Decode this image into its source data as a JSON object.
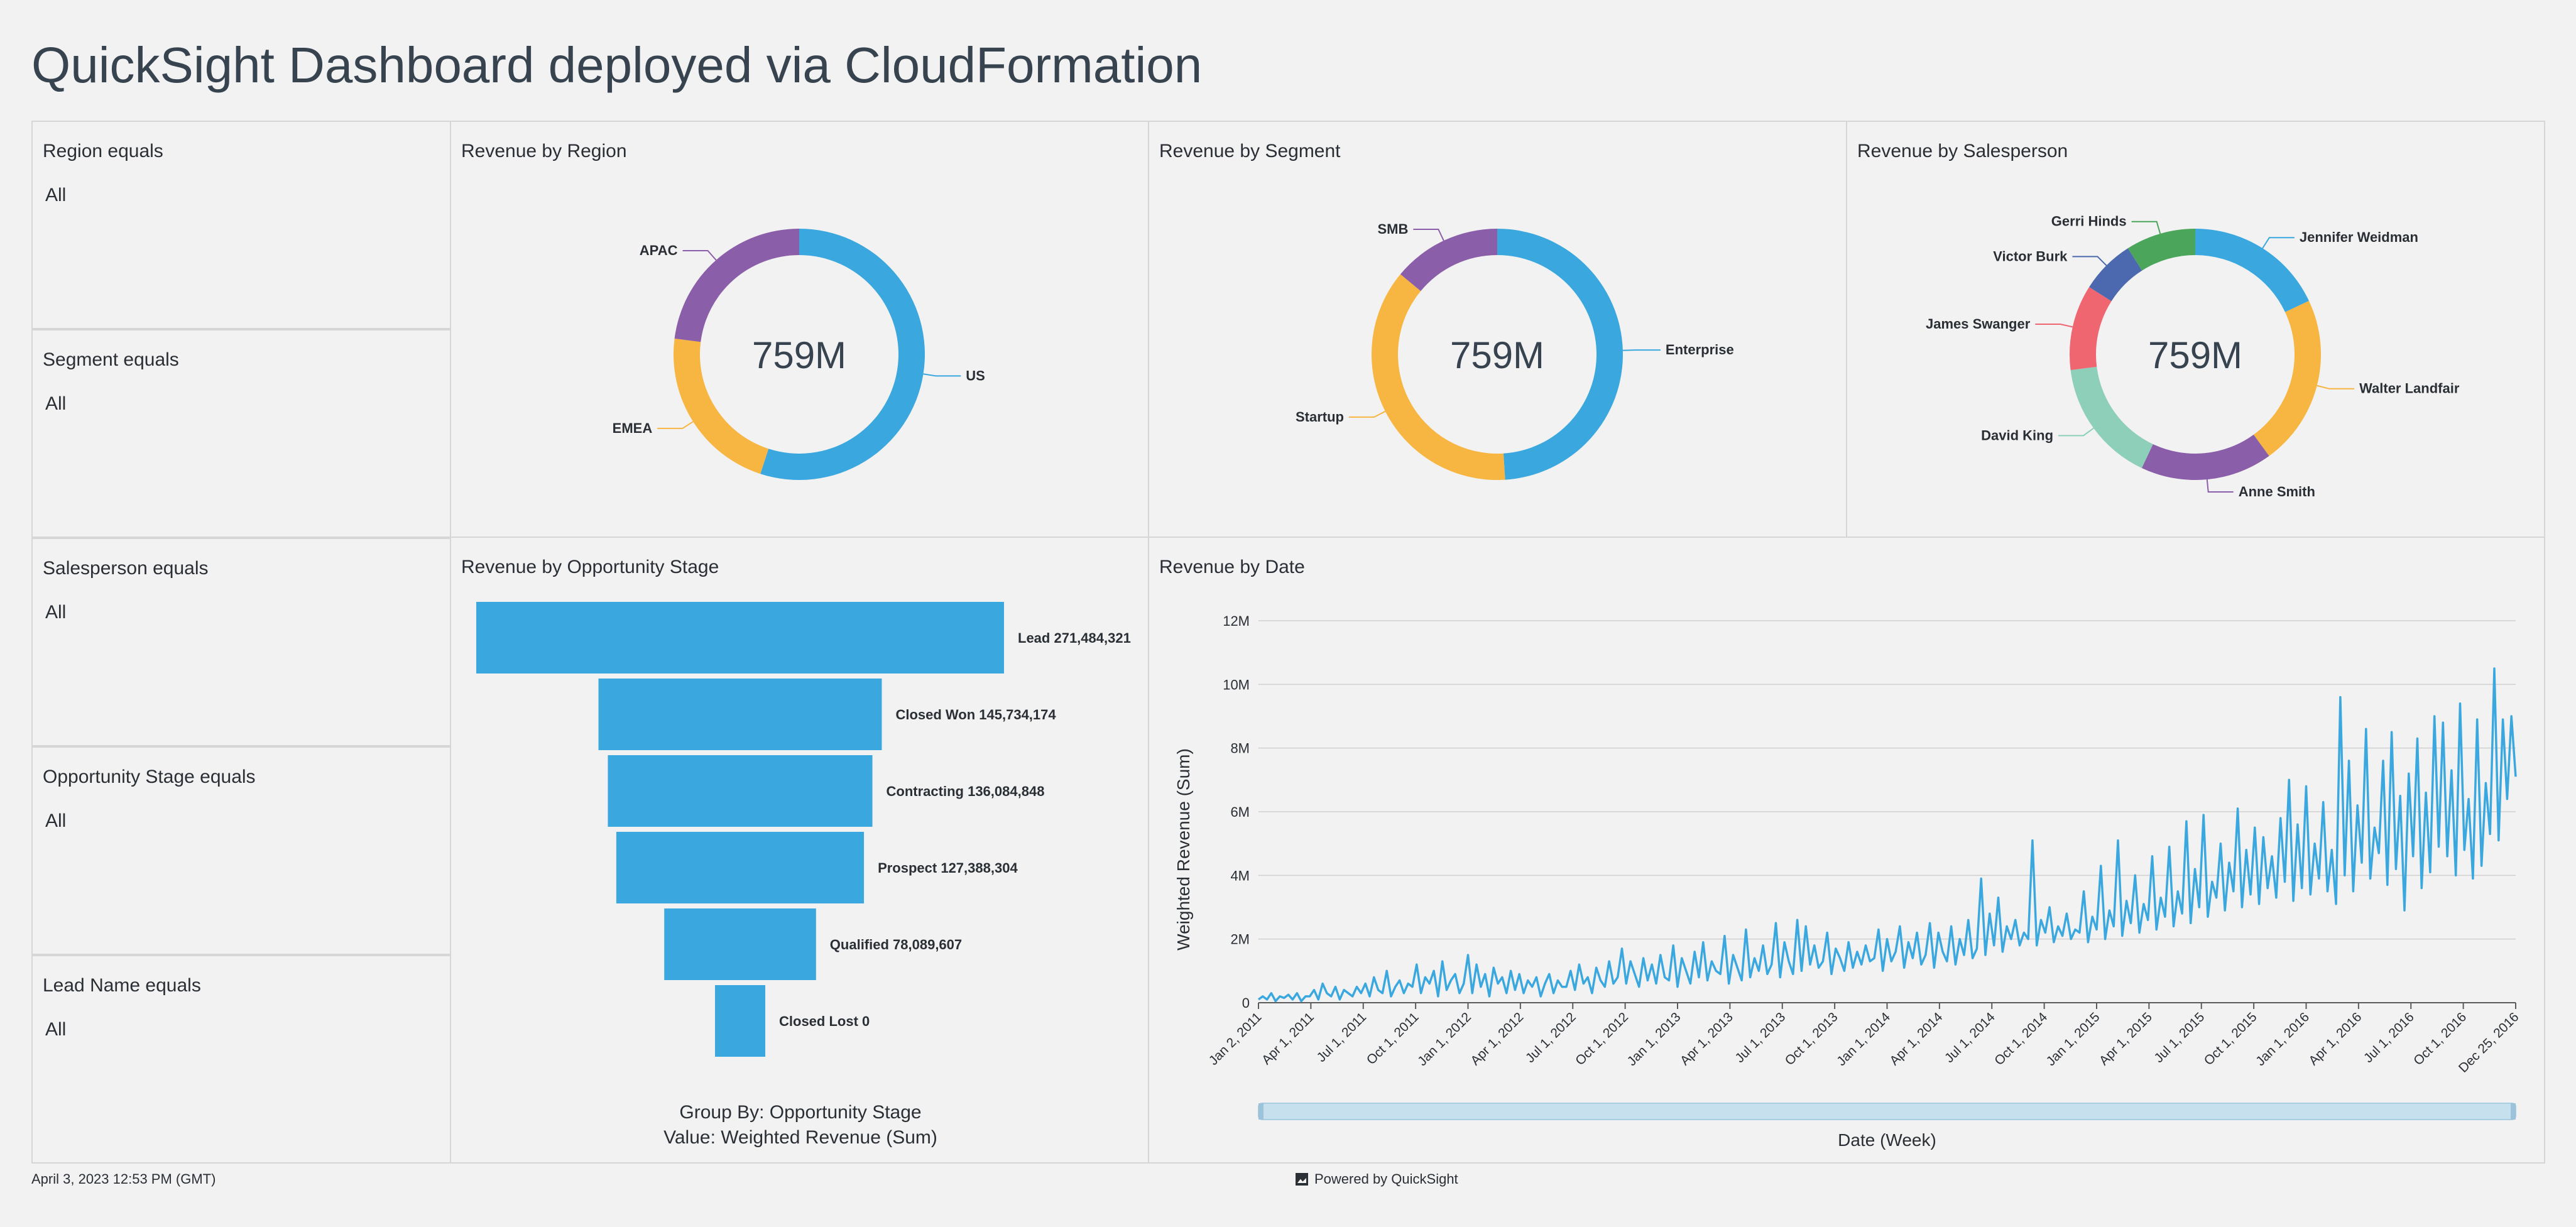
{
  "page": {
    "title": "QuickSight Dashboard deployed via CloudFormation",
    "footer_timestamp": "April 3, 2023 12:53 PM (GMT)",
    "footer_powered": "Powered by QuickSight"
  },
  "filters": [
    {
      "label": "Region equals",
      "value": "All"
    },
    {
      "label": "Segment equals",
      "value": "All"
    },
    {
      "label": "Salesperson equals",
      "value": "All"
    },
    {
      "label": "Opportunity Stage equals",
      "value": "All"
    },
    {
      "label": "Lead Name equals",
      "value": "All"
    }
  ],
  "colors": {
    "blue": "#3aa8df",
    "orange": "#f7b542",
    "purple": "#8a5ea8",
    "teal": "#8dcfb8",
    "red": "#ef6671",
    "navy": "#4c69b0",
    "green": "#4ba55a",
    "range_bar": "#c7e0ee"
  },
  "chart_data": [
    {
      "type": "pie",
      "title": "Revenue by Region",
      "center_label": "759M",
      "slices": [
        {
          "label": "US",
          "share": 0.55,
          "color": "#3aa8df"
        },
        {
          "label": "EMEA",
          "share": 0.22,
          "color": "#f7b542"
        },
        {
          "label": "APAC",
          "share": 0.23,
          "color": "#8a5ea8"
        }
      ]
    },
    {
      "type": "pie",
      "title": "Revenue by Segment",
      "center_label": "759M",
      "slices": [
        {
          "label": "Enterprise",
          "share": 0.49,
          "color": "#3aa8df"
        },
        {
          "label": "Startup",
          "share": 0.37,
          "color": "#f7b542"
        },
        {
          "label": "SMB",
          "share": 0.14,
          "color": "#8a5ea8"
        }
      ]
    },
    {
      "type": "pie",
      "title": "Revenue by Salesperson",
      "center_label": "759M",
      "slices": [
        {
          "label": "Jennifer Weidman",
          "share": 0.18,
          "color": "#3aa8df"
        },
        {
          "label": "Walter Landfair",
          "share": 0.22,
          "color": "#f7b542"
        },
        {
          "label": "Anne Smith",
          "share": 0.17,
          "color": "#8a5ea8"
        },
        {
          "label": "David King",
          "share": 0.16,
          "color": "#8dcfb8"
        },
        {
          "label": "James Swanger",
          "share": 0.11,
          "color": "#ef6671"
        },
        {
          "label": "Victor Burk",
          "share": 0.07,
          "color": "#4c69b0"
        },
        {
          "label": "Gerri Hinds",
          "share": 0.09,
          "color": "#4ba55a"
        }
      ]
    },
    {
      "type": "bar",
      "subtype": "funnel",
      "title": "Revenue by Opportunity Stage",
      "categories": [
        "Lead",
        "Closed Won",
        "Contracting",
        "Prospect",
        "Qualified",
        "Closed Lost"
      ],
      "values": [
        271484321,
        145734174,
        136084848,
        127388304,
        78089607,
        0
      ],
      "value_labels": [
        "271,484,321",
        "145,734,174",
        "136,084,848",
        "127,388,304",
        "78,089,607",
        "0"
      ],
      "group_by": "Group By: Opportunity Stage",
      "value_by": "Value: Weighted Revenue (Sum)"
    },
    {
      "type": "line",
      "title": "Revenue by Date",
      "xlabel": "Date (Week)",
      "ylabel": "Weighted Revenue (Sum)",
      "y_ticks": [
        "0",
        "2M",
        "4M",
        "6M",
        "8M",
        "10M",
        "12M"
      ],
      "ylim": [
        0,
        12
      ],
      "x_ticks": [
        "Jan 2, 2011",
        "Apr 1, 2011",
        "Jul 1, 2011",
        "Oct 1, 2011",
        "Jan 1, 2012",
        "Apr 1, 2012",
        "Jul 1, 2012",
        "Oct 1, 2012",
        "Jan 1, 2013",
        "Apr 1, 2013",
        "Jul 1, 2013",
        "Oct 1, 2013",
        "Jan 1, 2014",
        "Apr 1, 2014",
        "Jul 1, 2014",
        "Oct 1, 2014",
        "Jan 1, 2015",
        "Apr 1, 2015",
        "Jul 1, 2015",
        "Oct 1, 2015",
        "Jan 1, 2016",
        "Apr 1, 2016",
        "Jul 1, 2016",
        "Oct 1, 2016",
        "Dec 25, 2016"
      ],
      "quarterly_values_millions": [
        [
          0.1,
          0.2,
          0.1,
          0.3,
          0.05,
          0.2,
          0.15,
          0.25,
          0.1,
          0.3,
          0.05,
          0.2
        ],
        [
          0.2,
          0.4,
          0.1,
          0.6,
          0.3,
          0.2,
          0.5,
          0.1,
          0.4,
          0.3,
          0.2,
          0.5
        ],
        [
          0.3,
          0.6,
          0.2,
          0.8,
          0.4,
          0.3,
          1.0,
          0.2,
          0.5,
          0.7,
          0.3,
          0.6
        ],
        [
          0.5,
          1.2,
          0.3,
          0.8,
          0.6,
          1.0,
          0.2,
          1.3,
          0.4,
          0.7,
          0.9,
          0.3
        ],
        [
          0.6,
          1.5,
          0.3,
          1.2,
          0.5,
          0.9,
          0.2,
          1.1,
          0.6,
          0.8,
          0.3,
          1.0
        ],
        [
          0.4,
          0.9,
          0.3,
          0.7,
          0.5,
          0.8,
          0.2,
          0.6,
          0.9,
          0.3,
          0.7,
          0.5
        ],
        [
          0.5,
          1.0,
          0.4,
          1.2,
          0.6,
          0.8,
          0.3,
          1.1,
          0.7,
          0.5,
          1.3,
          0.6
        ],
        [
          0.8,
          1.7,
          0.6,
          1.3,
          0.9,
          0.5,
          1.4,
          0.7,
          1.2,
          0.6,
          1.5,
          0.8
        ],
        [
          0.7,
          1.8,
          0.5,
          1.4,
          1.0,
          0.6,
          1.6,
          0.8,
          1.9,
          0.7,
          1.3,
          1.0
        ],
        [
          0.9,
          2.1,
          0.6,
          1.5,
          1.1,
          0.7,
          2.3,
          0.8,
          1.4,
          1.0,
          1.8,
          0.9
        ],
        [
          1.2,
          2.5,
          0.8,
          1.9,
          1.3,
          0.9,
          2.6,
          1.0,
          2.4,
          1.2,
          1.8,
          1.1
        ],
        [
          1.3,
          2.2,
          0.9,
          1.7,
          1.4,
          1.0,
          1.9,
          1.1,
          1.6,
          1.2,
          1.8,
          1.3
        ],
        [
          1.4,
          2.3,
          1.0,
          2.0,
          1.3,
          1.6,
          2.4,
          1.1,
          1.9,
          1.4,
          2.2,
          1.2
        ],
        [
          1.5,
          2.5,
          1.1,
          2.2,
          1.6,
          1.3,
          2.4,
          1.2,
          2.0,
          1.5,
          2.6,
          1.4
        ],
        [
          1.7,
          3.9,
          1.5,
          2.8,
          1.8,
          3.3,
          1.6,
          2.4,
          2.0,
          2.6,
          1.8,
          2.2
        ],
        [
          2.0,
          5.1,
          1.8,
          2.6,
          2.2,
          3.0,
          1.9,
          2.4,
          2.1,
          2.8,
          2.0,
          2.3
        ],
        [
          2.2,
          3.5,
          1.9,
          2.7,
          2.3,
          4.3,
          2.0,
          2.9,
          2.4,
          5.1,
          2.1,
          3.2
        ],
        [
          2.5,
          4.0,
          2.2,
          3.1,
          2.6,
          4.6,
          2.3,
          3.3,
          2.7,
          4.9,
          2.4,
          3.5
        ],
        [
          2.8,
          5.7,
          2.5,
          4.2,
          3.0,
          5.9,
          2.7,
          3.8,
          3.3,
          5.0,
          2.9,
          4.4
        ],
        [
          3.5,
          6.1,
          3.0,
          4.8,
          3.4,
          5.5,
          3.1,
          5.2,
          3.6,
          4.6,
          3.3,
          5.8
        ],
        [
          3.8,
          7.0,
          3.2,
          5.6,
          3.6,
          6.8,
          3.4,
          5.0,
          3.9,
          6.3,
          3.5,
          4.8
        ],
        [
          3.1,
          9.6,
          4.0,
          7.6,
          3.5,
          6.2,
          4.4,
          8.6,
          3.9,
          5.5,
          4.7,
          7.6
        ],
        [
          3.7,
          8.5,
          4.2,
          6.5,
          2.9,
          7.2,
          4.6,
          8.3,
          3.6,
          6.6,
          4.1,
          9.0
        ],
        [
          4.9,
          8.8,
          4.6,
          7.3,
          4.0,
          9.4,
          4.8,
          6.4,
          3.9,
          8.9,
          4.3,
          6.9
        ],
        [
          5.3,
          10.5,
          5.1,
          8.9,
          6.4,
          9.0,
          7.1
        ]
      ]
    }
  ]
}
